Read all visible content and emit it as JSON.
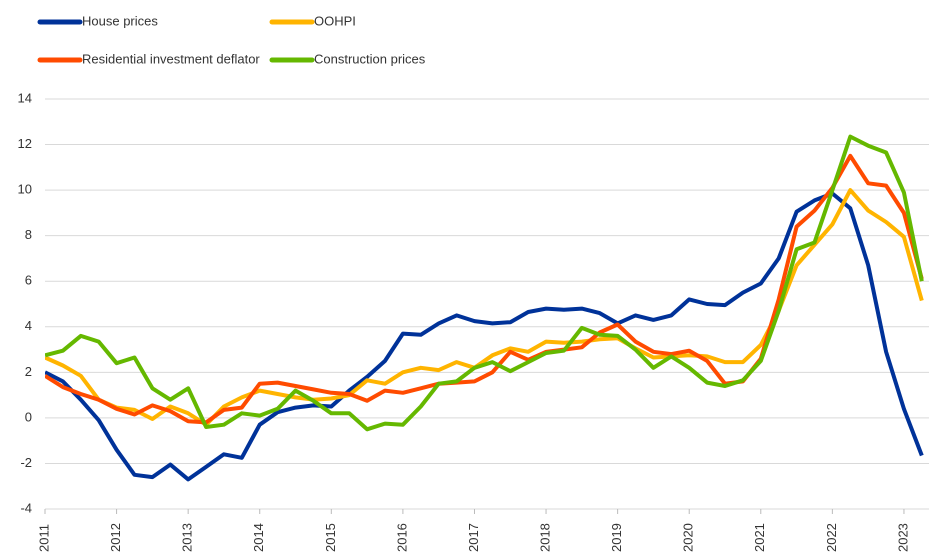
{
  "chart_data": {
    "type": "line",
    "x": [
      2011,
      2011.25,
      2011.5,
      2011.75,
      2012,
      2012.25,
      2012.5,
      2012.75,
      2013,
      2013.25,
      2013.5,
      2013.75,
      2014,
      2014.25,
      2014.5,
      2014.75,
      2015,
      2015.25,
      2015.5,
      2015.75,
      2016,
      2016.25,
      2016.5,
      2016.75,
      2017,
      2017.25,
      2017.5,
      2017.75,
      2018,
      2018.25,
      2018.5,
      2018.75,
      2019,
      2019.25,
      2019.5,
      2019.75,
      2020,
      2020.25,
      2020.5,
      2020.75,
      2021,
      2021.25,
      2021.5,
      2021.75,
      2022,
      2022.25,
      2022.5,
      2022.75,
      2023,
      2023.25
    ],
    "series": [
      {
        "name": "House prices",
        "color": "#003299",
        "values": [
          2.0,
          1.6,
          0.8,
          -0.1,
          -1.4,
          -2.5,
          -2.6,
          -2.05,
          -2.7,
          -2.15,
          -1.6,
          -1.75,
          -0.3,
          0.25,
          0.45,
          0.55,
          0.5,
          1.2,
          1.8,
          2.5,
          3.7,
          3.65,
          4.15,
          4.5,
          4.25,
          4.15,
          4.2,
          4.65,
          4.8,
          4.75,
          4.8,
          4.6,
          4.15,
          4.5,
          4.3,
          4.5,
          5.2,
          5.0,
          4.95,
          5.5,
          5.9,
          7.0,
          9.05,
          9.55,
          9.85,
          9.2,
          6.7,
          2.9,
          0.4,
          -1.65
        ]
      },
      {
        "name": "OOHPI",
        "color": "#ffb400",
        "values": [
          2.65,
          2.3,
          1.85,
          0.8,
          0.45,
          0.35,
          -0.05,
          0.5,
          0.2,
          -0.3,
          0.5,
          0.9,
          1.2,
          1.05,
          0.9,
          0.8,
          0.85,
          1.0,
          1.65,
          1.5,
          2.0,
          2.2,
          2.1,
          2.45,
          2.2,
          2.75,
          3.05,
          2.9,
          3.35,
          3.3,
          3.35,
          3.45,
          3.5,
          3.05,
          2.65,
          2.7,
          2.75,
          2.7,
          2.45,
          2.45,
          3.2,
          4.7,
          6.7,
          7.6,
          8.5,
          10.0,
          9.1,
          8.6,
          7.95,
          5.15
        ]
      },
      {
        "name": "Residential investment deflator",
        "color": "#ff4b00",
        "values": [
          1.85,
          1.35,
          1.05,
          0.8,
          0.4,
          0.15,
          0.55,
          0.3,
          -0.15,
          -0.2,
          0.35,
          0.45,
          1.5,
          1.55,
          1.4,
          1.25,
          1.1,
          1.05,
          0.75,
          1.2,
          1.1,
          1.3,
          1.5,
          1.55,
          1.6,
          2.0,
          2.9,
          2.55,
          2.9,
          3.0,
          3.1,
          3.75,
          4.1,
          3.35,
          2.9,
          2.8,
          2.95,
          2.5,
          1.5,
          1.6,
          2.6,
          5.2,
          8.4,
          9.1,
          10.1,
          11.5,
          10.3,
          10.2,
          9.0,
          6.1
        ]
      },
      {
        "name": "Construction prices",
        "color": "#65b800",
        "values": [
          2.75,
          2.95,
          3.6,
          3.35,
          2.4,
          2.65,
          1.3,
          0.8,
          1.3,
          -0.4,
          -0.3,
          0.2,
          0.1,
          0.4,
          1.2,
          0.75,
          0.2,
          0.2,
          -0.5,
          -0.25,
          -0.3,
          0.5,
          1.5,
          1.6,
          2.2,
          2.45,
          2.05,
          2.45,
          2.85,
          2.95,
          3.95,
          3.65,
          3.6,
          3.0,
          2.2,
          2.7,
          2.2,
          1.55,
          1.4,
          1.65,
          2.5,
          4.7,
          7.4,
          7.7,
          10.0,
          12.35,
          11.95,
          11.65,
          9.9,
          6.0
        ]
      }
    ],
    "xlim": [
      2011,
      2023.35
    ],
    "xticks": [
      2011,
      2012,
      2013,
      2014,
      2015,
      2016,
      2017,
      2018,
      2019,
      2020,
      2021,
      2022,
      2023
    ],
    "ylim": [
      -4,
      14
    ],
    "yticks": [
      -4,
      -2,
      0,
      2,
      4,
      6,
      8,
      10,
      12,
      14
    ],
    "grid": true
  }
}
